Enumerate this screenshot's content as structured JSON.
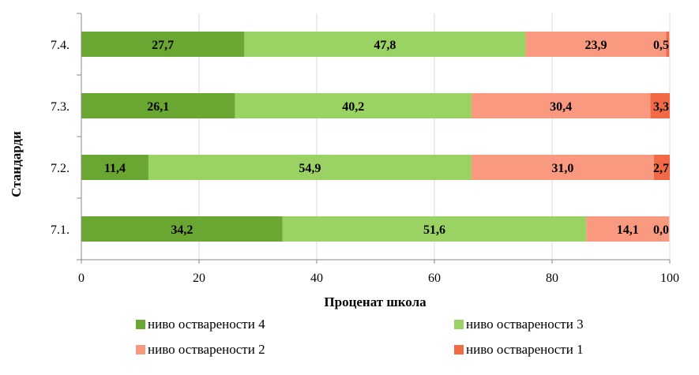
{
  "chart_data": {
    "type": "bar",
    "orientation": "horizontal",
    "stacked": true,
    "categories": [
      "7.1.",
      "7.2.",
      "7.3.",
      "7.4."
    ],
    "series": [
      {
        "name": "ниво оствареноcти 4",
        "color": "#6aa632",
        "values": [
          34.2,
          11.4,
          26.1,
          27.7
        ],
        "labels": [
          "34,2",
          "11,4",
          "26,1",
          "27,7"
        ]
      },
      {
        "name": "ниво оствареноcти 3",
        "color": "#9bd264",
        "values": [
          51.6,
          54.9,
          40.2,
          47.8
        ],
        "labels": [
          "51,6",
          "54,9",
          "40,2",
          "47,8"
        ]
      },
      {
        "name": "ниво оствареноcти 2",
        "color": "#f99a80",
        "values": [
          14.1,
          31.0,
          30.4,
          23.9
        ],
        "labels": [
          "14,1",
          "31,0",
          "30,4",
          "23,9"
        ]
      },
      {
        "name": "ниво оствареноcти 1",
        "color": "#f26a45",
        "values": [
          0.0,
          2.7,
          3.3,
          0.5
        ],
        "labels": [
          "0,0",
          "2,7",
          "3,3",
          "0,5"
        ]
      }
    ],
    "xlabel": "Проценат школа",
    "ylabel": "Стандарди",
    "xlim": [
      0,
      100
    ],
    "xticks": [
      "0",
      "20",
      "40",
      "60",
      "80",
      "100"
    ],
    "grid": true,
    "legend_position": "bottom"
  }
}
